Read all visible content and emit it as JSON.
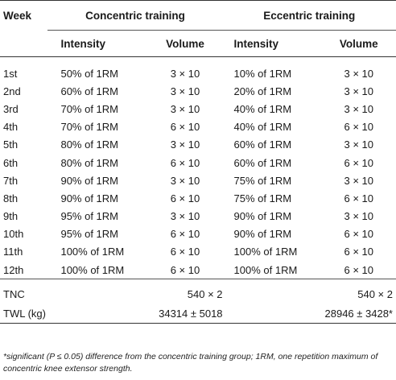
{
  "header": {
    "week": "Week",
    "concentric": "Concentric training",
    "eccentric": "Eccentric training",
    "intensity": "Intensity",
    "volume": "Volume"
  },
  "rows": [
    {
      "week": "1st",
      "c_int": "50% of 1RM",
      "c_vol": "3 × 10",
      "e_int": "10% of 1RM",
      "e_vol": "3 × 10"
    },
    {
      "week": "2nd",
      "c_int": "60% of 1RM",
      "c_vol": "3 × 10",
      "e_int": "20% of 1RM",
      "e_vol": "3 × 10"
    },
    {
      "week": "3rd",
      "c_int": "70% of 1RM",
      "c_vol": "3 × 10",
      "e_int": "40% of 1RM",
      "e_vol": "3 × 10"
    },
    {
      "week": "4th",
      "c_int": "70% of 1RM",
      "c_vol": "6 × 10",
      "e_int": "40% of 1RM",
      "e_vol": "6 × 10"
    },
    {
      "week": "5th",
      "c_int": "80% of 1RM",
      "c_vol": "3 × 10",
      "e_int": "60% of 1RM",
      "e_vol": "3 × 10"
    },
    {
      "week": "6th",
      "c_int": "80% of 1RM",
      "c_vol": "6 × 10",
      "e_int": "60% of 1RM",
      "e_vol": "6 × 10"
    },
    {
      "week": "7th",
      "c_int": "90% of 1RM",
      "c_vol": "3 × 10",
      "e_int": "75% of 1RM",
      "e_vol": "3 × 10"
    },
    {
      "week": "8th",
      "c_int": "90% of 1RM",
      "c_vol": "6 × 10",
      "e_int": "75% of 1RM",
      "e_vol": "6 × 10"
    },
    {
      "week": "9th",
      "c_int": "95% of 1RM",
      "c_vol": "3 × 10",
      "e_int": "90% of 1RM",
      "e_vol": "3 × 10"
    },
    {
      "week": "10th",
      "c_int": "95% of 1RM",
      "c_vol": "6 × 10",
      "e_int": "90% of 1RM",
      "e_vol": "6 × 10"
    },
    {
      "week": "11th",
      "c_int": "100% of 1RM",
      "c_vol": "6 × 10",
      "e_int": "100% of 1RM",
      "e_vol": "6 × 10"
    },
    {
      "week": "12th",
      "c_int": "100% of 1RM",
      "c_vol": "6 × 10",
      "e_int": "100% of 1RM",
      "e_vol": "6 × 10"
    }
  ],
  "summary": [
    {
      "label": "TNC",
      "concentric": "540 × 2",
      "eccentric": "540 × 2"
    },
    {
      "label": "TWL (kg)",
      "concentric": "34314 ± 5018",
      "eccentric": "28946 ± 3428*"
    }
  ],
  "footnote": "*significant (P ≤ 0.05) difference from the concentric training group; 1RM, one repetition maximum of concentric knee extensor strength."
}
